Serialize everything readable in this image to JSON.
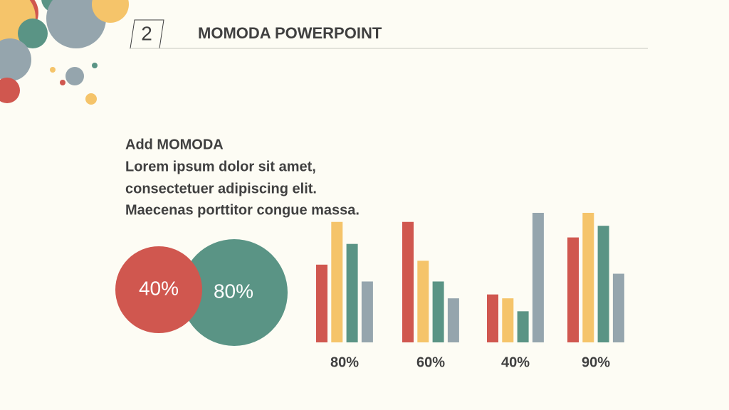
{
  "header": {
    "number": "2",
    "title": "MOMODA POWERPOINT"
  },
  "body": {
    "lines": [
      "Add MOMODA",
      "Lorem ipsum dolor sit amet,",
      "consectetuer adipiscing elit.",
      "Maecenas porttitor congue massa."
    ]
  },
  "circles": [
    {
      "label": "80%",
      "color": "#5a9485"
    },
    {
      "label": "40%",
      "color": "#d0574f"
    }
  ],
  "chart_data": {
    "type": "bar",
    "categories": [
      "80%",
      "60%",
      "40%",
      "90%"
    ],
    "series": [
      {
        "color": "#d0574f",
        "values": [
          60,
          93,
          37,
          81
        ]
      },
      {
        "color": "#f5c46a",
        "values": [
          93,
          63,
          34,
          100
        ]
      },
      {
        "color": "#5a9485",
        "values": [
          76,
          47,
          24,
          90
        ]
      },
      {
        "color": "#95a5ad",
        "values": [
          47,
          34,
          100,
          53
        ]
      }
    ],
    "ylim": [
      0,
      100
    ]
  }
}
